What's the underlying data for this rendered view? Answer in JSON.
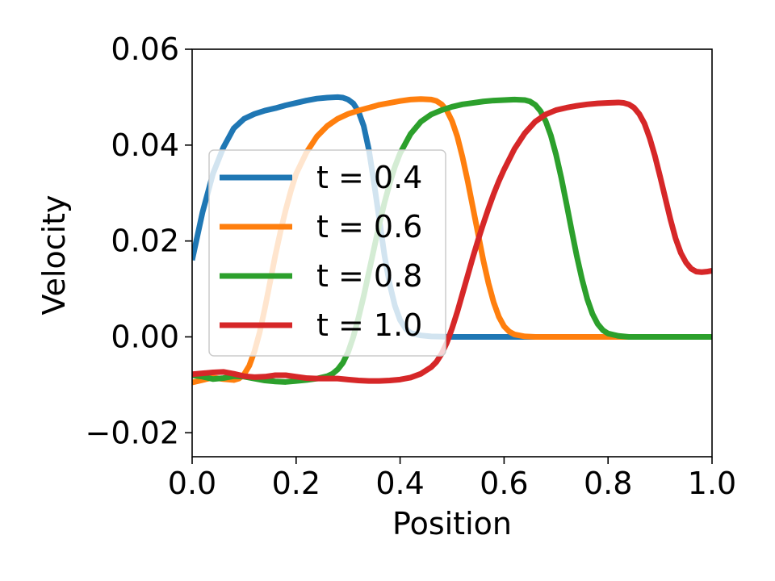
{
  "chart_data": {
    "type": "line",
    "xlabel": "Position",
    "ylabel": "Velocity",
    "xlim": [
      0.0,
      1.0
    ],
    "ylim": [
      -0.025,
      0.06
    ],
    "xticks": [
      0.0,
      0.2,
      0.4,
      0.6,
      0.8,
      1.0
    ],
    "xtick_labels": [
      "0.0",
      "0.2",
      "0.4",
      "0.6",
      "0.8",
      "1.0"
    ],
    "yticks": [
      -0.02,
      0.0,
      0.02,
      0.04,
      0.06
    ],
    "ytick_labels": [
      "−0.02",
      "0.00",
      "0.02",
      "0.04",
      "0.06"
    ],
    "grid": false,
    "legend_position": "center-left",
    "series": [
      {
        "name": "t = 0.4",
        "color": "#1f77b4",
        "points": [
          [
            0.0,
            0.016
          ],
          [
            0.02,
            0.026
          ],
          [
            0.04,
            0.034
          ],
          [
            0.06,
            0.0395
          ],
          [
            0.08,
            0.0435
          ],
          [
            0.1,
            0.0455
          ],
          [
            0.12,
            0.0465
          ],
          [
            0.14,
            0.0472
          ],
          [
            0.16,
            0.0477
          ],
          [
            0.18,
            0.0483
          ],
          [
            0.2,
            0.0488
          ],
          [
            0.22,
            0.0493
          ],
          [
            0.24,
            0.0497
          ],
          [
            0.26,
            0.0499
          ],
          [
            0.28,
            0.05
          ],
          [
            0.29,
            0.0499
          ],
          [
            0.3,
            0.0495
          ],
          [
            0.31,
            0.0487
          ],
          [
            0.32,
            0.047
          ],
          [
            0.33,
            0.044
          ],
          [
            0.34,
            0.039
          ],
          [
            0.35,
            0.032
          ],
          [
            0.36,
            0.0245
          ],
          [
            0.37,
            0.017
          ],
          [
            0.38,
            0.011
          ],
          [
            0.39,
            0.0065
          ],
          [
            0.4,
            0.0035
          ],
          [
            0.41,
            0.0018
          ],
          [
            0.42,
            0.0008
          ],
          [
            0.44,
            0.0003
          ],
          [
            0.46,
            0.0001
          ],
          [
            0.5,
            0.0
          ],
          [
            0.6,
            0.0
          ],
          [
            0.7,
            0.0
          ],
          [
            0.8,
            0.0
          ],
          [
            0.9,
            0.0
          ],
          [
            1.0,
            0.0
          ]
        ]
      },
      {
        "name": "t = 0.6",
        "color": "#ff7f0e",
        "points": [
          [
            0.0,
            -0.0095
          ],
          [
            0.02,
            -0.009
          ],
          [
            0.04,
            -0.0085
          ],
          [
            0.06,
            -0.0088
          ],
          [
            0.08,
            -0.009
          ],
          [
            0.09,
            -0.0087
          ],
          [
            0.1,
            -0.0078
          ],
          [
            0.11,
            -0.006
          ],
          [
            0.12,
            -0.003
          ],
          [
            0.13,
            0.001
          ],
          [
            0.14,
            0.006
          ],
          [
            0.15,
            0.0115
          ],
          [
            0.16,
            0.017
          ],
          [
            0.17,
            0.022
          ],
          [
            0.18,
            0.0265
          ],
          [
            0.19,
            0.0305
          ],
          [
            0.2,
            0.034
          ],
          [
            0.22,
            0.0385
          ],
          [
            0.24,
            0.0418
          ],
          [
            0.26,
            0.044
          ],
          [
            0.28,
            0.0455
          ],
          [
            0.3,
            0.0465
          ],
          [
            0.32,
            0.0472
          ],
          [
            0.34,
            0.0478
          ],
          [
            0.36,
            0.0484
          ],
          [
            0.38,
            0.0488
          ],
          [
            0.4,
            0.0492
          ],
          [
            0.42,
            0.0495
          ],
          [
            0.44,
            0.0496
          ],
          [
            0.46,
            0.0495
          ],
          [
            0.47,
            0.0492
          ],
          [
            0.48,
            0.0485
          ],
          [
            0.49,
            0.0472
          ],
          [
            0.5,
            0.045
          ],
          [
            0.51,
            0.0418
          ],
          [
            0.52,
            0.0375
          ],
          [
            0.53,
            0.0325
          ],
          [
            0.54,
            0.027
          ],
          [
            0.55,
            0.0215
          ],
          [
            0.56,
            0.016
          ],
          [
            0.57,
            0.0112
          ],
          [
            0.58,
            0.0072
          ],
          [
            0.59,
            0.0042
          ],
          [
            0.6,
            0.0022
          ],
          [
            0.61,
            0.0011
          ],
          [
            0.62,
            0.0005
          ],
          [
            0.64,
            0.0001
          ],
          [
            0.66,
            0.0
          ],
          [
            0.7,
            0.0
          ],
          [
            0.8,
            0.0
          ],
          [
            0.9,
            0.0
          ],
          [
            1.0,
            0.0
          ]
        ]
      },
      {
        "name": "t = 0.8",
        "color": "#2ca02c",
        "points": [
          [
            0.0,
            -0.008
          ],
          [
            0.02,
            -0.0083
          ],
          [
            0.04,
            -0.0088
          ],
          [
            0.06,
            -0.0086
          ],
          [
            0.08,
            -0.0082
          ],
          [
            0.1,
            -0.0083
          ],
          [
            0.12,
            -0.0087
          ],
          [
            0.14,
            -0.0091
          ],
          [
            0.16,
            -0.0093
          ],
          [
            0.18,
            -0.0094
          ],
          [
            0.2,
            -0.0092
          ],
          [
            0.22,
            -0.009
          ],
          [
            0.24,
            -0.0087
          ],
          [
            0.26,
            -0.0082
          ],
          [
            0.27,
            -0.0077
          ],
          [
            0.28,
            -0.0068
          ],
          [
            0.29,
            -0.0054
          ],
          [
            0.3,
            -0.0032
          ],
          [
            0.31,
            0.0
          ],
          [
            0.32,
            0.004
          ],
          [
            0.33,
            0.0085
          ],
          [
            0.34,
            0.0135
          ],
          [
            0.35,
            0.0185
          ],
          [
            0.36,
            0.0235
          ],
          [
            0.37,
            0.028
          ],
          [
            0.38,
            0.032
          ],
          [
            0.39,
            0.0355
          ],
          [
            0.4,
            0.0383
          ],
          [
            0.42,
            0.0423
          ],
          [
            0.44,
            0.0449
          ],
          [
            0.46,
            0.0464
          ],
          [
            0.48,
            0.0473
          ],
          [
            0.5,
            0.048
          ],
          [
            0.52,
            0.0485
          ],
          [
            0.54,
            0.0488
          ],
          [
            0.56,
            0.0491
          ],
          [
            0.58,
            0.0493
          ],
          [
            0.6,
            0.0494
          ],
          [
            0.62,
            0.0495
          ],
          [
            0.64,
            0.0494
          ],
          [
            0.65,
            0.0491
          ],
          [
            0.66,
            0.0484
          ],
          [
            0.67,
            0.0471
          ],
          [
            0.68,
            0.045
          ],
          [
            0.69,
            0.042
          ],
          [
            0.7,
            0.038
          ],
          [
            0.71,
            0.0332
          ],
          [
            0.72,
            0.0278
          ],
          [
            0.73,
            0.0222
          ],
          [
            0.74,
            0.0168
          ],
          [
            0.75,
            0.012
          ],
          [
            0.76,
            0.0079
          ],
          [
            0.77,
            0.0048
          ],
          [
            0.78,
            0.0027
          ],
          [
            0.79,
            0.0014
          ],
          [
            0.8,
            0.0007
          ],
          [
            0.82,
            0.0002
          ],
          [
            0.84,
            0.0
          ],
          [
            0.9,
            0.0
          ],
          [
            1.0,
            0.0
          ]
        ]
      },
      {
        "name": "t = 1.0",
        "color": "#d62728",
        "points": [
          [
            0.0,
            -0.0078
          ],
          [
            0.02,
            -0.0076
          ],
          [
            0.04,
            -0.0074
          ],
          [
            0.06,
            -0.0073
          ],
          [
            0.08,
            -0.0077
          ],
          [
            0.1,
            -0.0082
          ],
          [
            0.12,
            -0.0084
          ],
          [
            0.14,
            -0.0083
          ],
          [
            0.16,
            -0.008
          ],
          [
            0.18,
            -0.008
          ],
          [
            0.2,
            -0.0083
          ],
          [
            0.22,
            -0.0086
          ],
          [
            0.24,
            -0.0087
          ],
          [
            0.26,
            -0.0087
          ],
          [
            0.28,
            -0.0087
          ],
          [
            0.3,
            -0.0089
          ],
          [
            0.32,
            -0.0091
          ],
          [
            0.34,
            -0.0092
          ],
          [
            0.36,
            -0.0092
          ],
          [
            0.38,
            -0.0091
          ],
          [
            0.4,
            -0.0089
          ],
          [
            0.42,
            -0.0085
          ],
          [
            0.44,
            -0.0077
          ],
          [
            0.46,
            -0.0063
          ],
          [
            0.47,
            -0.0052
          ],
          [
            0.48,
            -0.0035
          ],
          [
            0.49,
            -0.0012
          ],
          [
            0.5,
            0.0018
          ],
          [
            0.51,
            0.0052
          ],
          [
            0.52,
            0.009
          ],
          [
            0.53,
            0.0128
          ],
          [
            0.54,
            0.0166
          ],
          [
            0.55,
            0.0202
          ],
          [
            0.56,
            0.0236
          ],
          [
            0.57,
            0.0268
          ],
          [
            0.58,
            0.0298
          ],
          [
            0.59,
            0.0325
          ],
          [
            0.6,
            0.0349
          ],
          [
            0.62,
            0.0392
          ],
          [
            0.64,
            0.0425
          ],
          [
            0.66,
            0.0449
          ],
          [
            0.68,
            0.0464
          ],
          [
            0.7,
            0.0473
          ],
          [
            0.72,
            0.0478
          ],
          [
            0.74,
            0.0482
          ],
          [
            0.76,
            0.0485
          ],
          [
            0.78,
            0.0487
          ],
          [
            0.8,
            0.0488
          ],
          [
            0.82,
            0.0489
          ],
          [
            0.83,
            0.0488
          ],
          [
            0.84,
            0.0485
          ],
          [
            0.85,
            0.0478
          ],
          [
            0.86,
            0.0465
          ],
          [
            0.87,
            0.0445
          ],
          [
            0.88,
            0.0415
          ],
          [
            0.89,
            0.0378
          ],
          [
            0.9,
            0.0335
          ],
          [
            0.91,
            0.029
          ],
          [
            0.92,
            0.0245
          ],
          [
            0.93,
            0.0205
          ],
          [
            0.94,
            0.0175
          ],
          [
            0.95,
            0.0155
          ],
          [
            0.96,
            0.0142
          ],
          [
            0.97,
            0.0136
          ],
          [
            0.98,
            0.0135
          ],
          [
            0.99,
            0.0136
          ],
          [
            1.0,
            0.0138
          ]
        ]
      }
    ]
  }
}
